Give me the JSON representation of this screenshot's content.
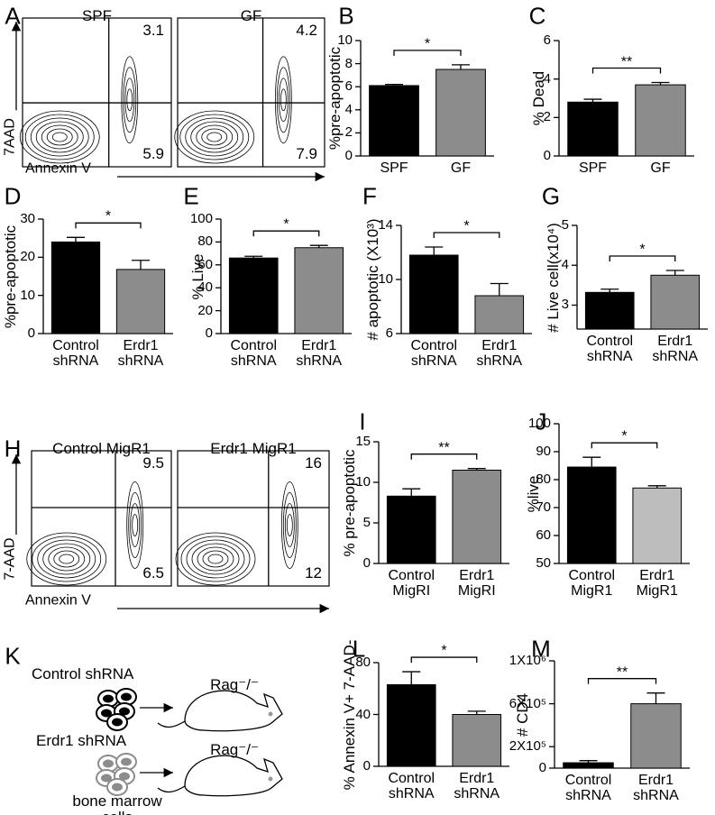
{
  "chart_data": [
    {
      "type": "bar",
      "panel": "B",
      "y_label": "%pre-apoptotic",
      "categories": [
        "SPF",
        "GF"
      ],
      "values": [
        6.1,
        7.5
      ],
      "errors": [
        0.1,
        0.4
      ],
      "colors": [
        "#000000",
        "#8c8c8c"
      ],
      "significance": "*",
      "ylim": [
        0,
        10
      ],
      "yticks": [
        0,
        2,
        4,
        6,
        8,
        10
      ]
    },
    {
      "type": "bar",
      "panel": "C",
      "y_label": "% Dead",
      "categories": [
        "SPF",
        "GF"
      ],
      "values": [
        2.8,
        3.7
      ],
      "errors": [
        0.15,
        0.12
      ],
      "colors": [
        "#000000",
        "#8c8c8c"
      ],
      "significance": "**",
      "ylim": [
        0,
        6
      ],
      "yticks": [
        0,
        2,
        4,
        6
      ]
    },
    {
      "type": "bar",
      "panel": "D",
      "y_label": "%pre-apoptotic",
      "categories": [
        "Control shRNA",
        "Erdr1 shRNA"
      ],
      "values": [
        24,
        16.8
      ],
      "errors": [
        1.2,
        2.4
      ],
      "colors": [
        "#000000",
        "#8c8c8c"
      ],
      "significance": "*",
      "ylim": [
        0,
        30
      ],
      "yticks": [
        0,
        10,
        20,
        30
      ]
    },
    {
      "type": "bar",
      "panel": "E",
      "y_label": "% Live",
      "categories": [
        "Control shRNA",
        "Erdr1 shRNA"
      ],
      "values": [
        66,
        75
      ],
      "errors": [
        1.5,
        2
      ],
      "colors": [
        "#000000",
        "#8c8c8c"
      ],
      "significance": "*",
      "ylim": [
        0,
        100
      ],
      "yticks": [
        0,
        20,
        40,
        60,
        80,
        100
      ]
    },
    {
      "type": "bar",
      "panel": "F",
      "y_label": "# apoptotic (X10³)",
      "categories": [
        "Control shRNA",
        "Erdr1 shRNA"
      ],
      "values": [
        11.8,
        8.8
      ],
      "errors": [
        0.6,
        0.9
      ],
      "colors": [
        "#000000",
        "#8c8c8c"
      ],
      "significance": "*",
      "ylim": [
        6,
        14
      ],
      "yticks": [
        6,
        10,
        14
      ]
    },
    {
      "type": "bar",
      "panel": "G",
      "y_label": "# Live cell(x10⁴)",
      "categories": [
        "Control shRNA",
        "Erdr1 shRNA"
      ],
      "values": [
        3.32,
        3.75
      ],
      "errors": [
        0.08,
        0.12
      ],
      "colors": [
        "#000000",
        "#8c8c8c"
      ],
      "significance": "*",
      "ylim": [
        2.4,
        5
      ],
      "yticks": [
        3,
        4,
        5
      ]
    },
    {
      "type": "bar",
      "panel": "I",
      "y_label": "% pre-apoptotic",
      "categories": [
        "Control MigRI",
        "Erdr1 MigRI"
      ],
      "values": [
        8.3,
        11.5
      ],
      "errors": [
        0.9,
        0.2
      ],
      "colors": [
        "#000000",
        "#8c8c8c"
      ],
      "significance": "**",
      "ylim": [
        0,
        15
      ],
      "yticks": [
        0,
        5,
        10,
        15
      ]
    },
    {
      "type": "bar",
      "panel": "J",
      "y_label": "%live",
      "categories": [
        "Control MigR1",
        "Erdr1 MigR1"
      ],
      "values": [
        84.5,
        77
      ],
      "errors": [
        3.5,
        0.8
      ],
      "colors": [
        "#000000",
        "#bdbdbd"
      ],
      "significance": "*",
      "ylim": [
        50,
        100
      ],
      "yticks": [
        50,
        60,
        70,
        80,
        90,
        100
      ]
    },
    {
      "type": "bar",
      "panel": "L",
      "y_label": "% Annexin V+ 7-AAD-",
      "categories": [
        "Control shRNA",
        "Erdr1 shRNA"
      ],
      "values": [
        63,
        40
      ],
      "errors": [
        10,
        2.5
      ],
      "colors": [
        "#000000",
        "#8c8c8c"
      ],
      "significance": "*",
      "ylim": [
        0,
        80
      ],
      "yticks": [
        0,
        40,
        80
      ]
    },
    {
      "type": "bar",
      "panel": "M",
      "y_label": "# CD4",
      "categories": [
        "Control shRNA",
        "Erdr1 shRNA"
      ],
      "values": [
        50000,
        600000
      ],
      "errors": [
        20000,
        100000
      ],
      "colors": [
        "#000000",
        "#8c8c8c"
      ],
      "significance": "**",
      "ylim": [
        0,
        1000000
      ],
      "yticks": [
        0,
        {
          "value": 200000,
          "label": "2X10⁵"
        },
        {
          "value": 600000,
          "label": "6X10⁵"
        },
        {
          "value": 1000000,
          "label": "1X10⁶"
        }
      ]
    }
  ],
  "flow_plots": [
    {
      "panel": "A",
      "y_label": "7AAD",
      "x_label": "Annexin V",
      "plots": [
        {
          "title": "SPF",
          "upper_right": 3.1,
          "lower_right": 5.9
        },
        {
          "title": "GF",
          "upper_right": 4.2,
          "lower_right": 7.9
        }
      ]
    },
    {
      "panel": "H",
      "y_label": "7-AAD",
      "x_label": "Annexin V",
      "plots": [
        {
          "title": "Control MigR1",
          "upper_right": 9.5,
          "lower_right": 6.5
        },
        {
          "title": "Erdr1 MigR1",
          "upper_right": 16,
          "lower_right": 12
        }
      ]
    }
  ],
  "diagram": {
    "panel": "K",
    "top_label": "Control shRNA",
    "top_recipient": "Rag⁻/⁻",
    "bottom_label": "Erdr1 shRNA",
    "bottom_recipient": "Rag⁻/⁻",
    "source_label": "bone marrow cells"
  }
}
